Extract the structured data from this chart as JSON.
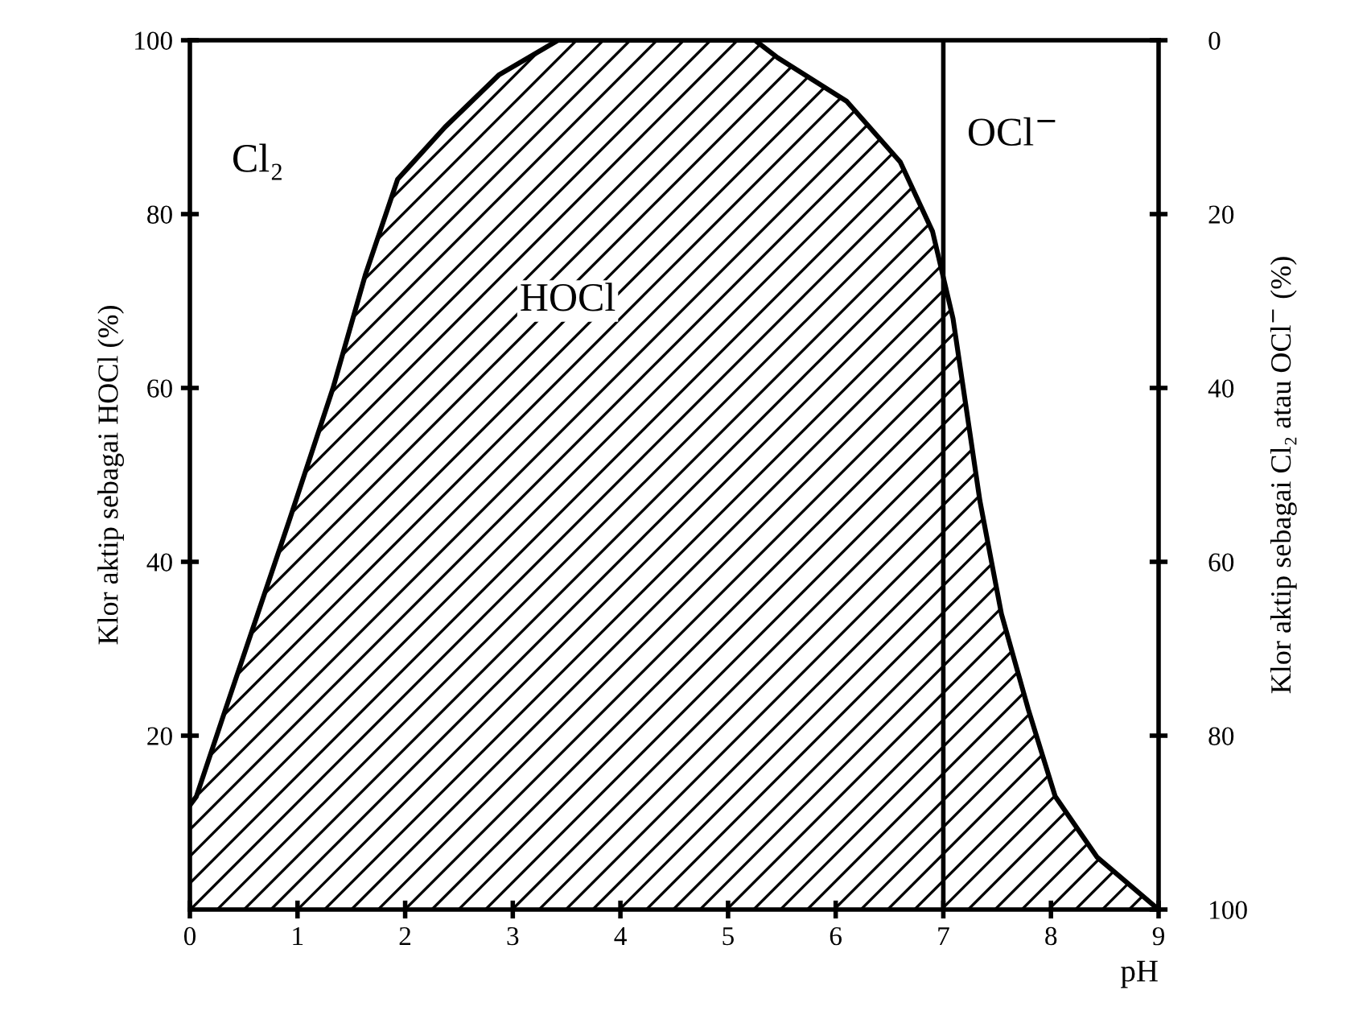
{
  "chart_data": {
    "type": "area",
    "xlabel": "pH",
    "ylabel": "Klor aktip sebagai HOCl (%)",
    "y2label": "Klor aktip sebagai Cl₂ atau OCl$^{−}$ (%)",
    "series": [
      {
        "color": "#000000",
        "x": [
          0,
          0.06,
          0.33,
          0.63,
          0.93,
          1.33,
          1.63,
          1.93,
          2.37,
          2.87,
          3.42,
          5.25,
          5.46,
          6.1,
          6.6,
          6.9,
          7.09,
          7.34,
          7.54,
          7.79,
          8.04,
          8.43,
          9
        ],
        "values": [
          12,
          13,
          23,
          34,
          45,
          60,
          73,
          84,
          90,
          96,
          100,
          100,
          98,
          93,
          86,
          78,
          68,
          47,
          34,
          23,
          13,
          6,
          0
        ]
      }
    ],
    "xlim": [
      0,
      9
    ],
    "xticks": [
      0,
      1,
      2,
      3,
      4,
      5,
      6,
      7,
      8,
      9
    ],
    "ylim": [
      0,
      100
    ],
    "yticks": [
      20,
      40,
      60,
      80,
      100
    ],
    "y2lim": [
      100,
      0
    ],
    "y2ticks": [
      0,
      20,
      40,
      60,
      80,
      100
    ],
    "ref_lines": [
      {
        "axis": "x",
        "value": 7,
        "color": "#000000"
      }
    ],
    "annotations": [
      "Cl₂",
      "HOCl",
      "OCl$^{−}$"
    ],
    "grid": false,
    "legend": false
  }
}
